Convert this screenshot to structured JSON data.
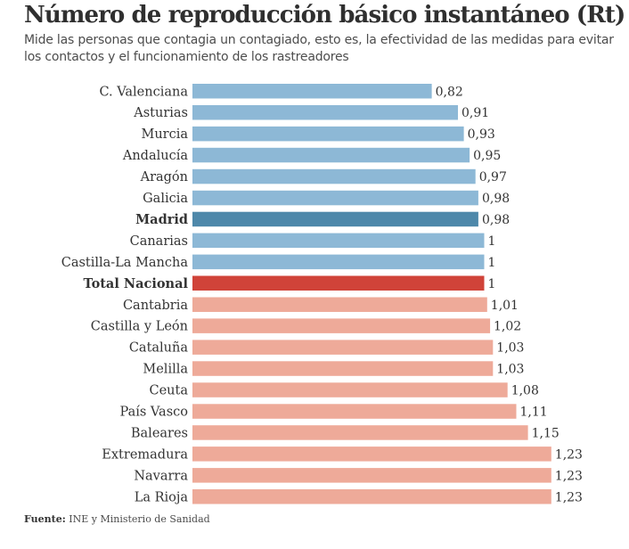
{
  "chart_data": {
    "type": "bar",
    "orientation": "horizontal",
    "title": "Número de reproducción básico instantáneo (Rt)",
    "subtitle": "Mide las personas que contagia un contagiado, esto es, la efectividad de las medidas para evitar los contactos y el funcionamiento de los rastreadores",
    "categories": [
      "C. Valenciana",
      "Asturias",
      "Murcia",
      "Andalucía",
      "Aragón",
      "Galicia",
      "Madrid",
      "Canarias",
      "Castilla-La Mancha",
      "Total Nacional",
      "Cantabria",
      "Castilla y León",
      "Cataluña",
      "Melilla",
      "Ceuta",
      "País Vasco",
      "Baleares",
      "Extremadura",
      "Navarra",
      "La Rioja"
    ],
    "values": [
      0.82,
      0.91,
      0.93,
      0.95,
      0.97,
      0.98,
      0.98,
      1,
      1,
      1,
      1.01,
      1.02,
      1.03,
      1.03,
      1.08,
      1.11,
      1.15,
      1.23,
      1.23,
      1.23
    ],
    "value_labels": [
      "0,82",
      "0,91",
      "0,93",
      "0,95",
      "0,97",
      "0,98",
      "0,98",
      "1",
      "1",
      "1",
      "1,01",
      "1,02",
      "1,03",
      "1,03",
      "1,08",
      "1,11",
      "1,15",
      "1,23",
      "1,23",
      "1,23"
    ],
    "bold_categories": [
      "Madrid",
      "Total Nacional"
    ],
    "colors": {
      "below_one": "#8db8d6",
      "madrid": "#4e88aa",
      "total_nacional": "#d04339",
      "above_one": "#eeaa99"
    },
    "grid": false,
    "legend": "none"
  },
  "source": {
    "label": "Fuente:",
    "text": "INE y Ministerio de Sanidad"
  }
}
